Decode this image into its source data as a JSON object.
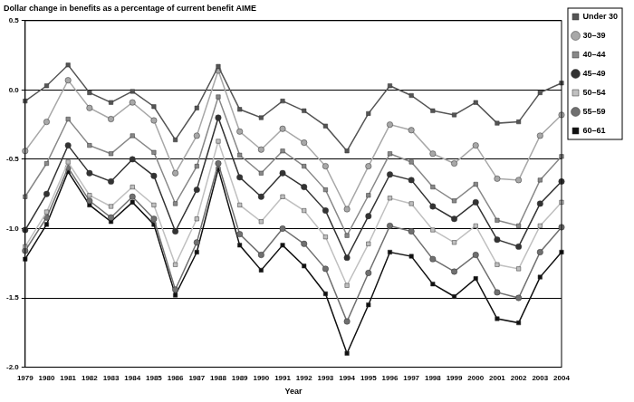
{
  "chart_data": {
    "type": "line",
    "ylabel": "Dollar change in benefits as a percentage of current benefit AIME",
    "xlabel": "Year",
    "categories": [
      "1979",
      "1980",
      "1981",
      "1982",
      "1983",
      "1984",
      "1985",
      "1986",
      "1987",
      "1988",
      "1989",
      "1990",
      "1991",
      "1992",
      "1993",
      "1994",
      "1995",
      "1996",
      "1997",
      "1998",
      "1999",
      "2000",
      "2001",
      "2002",
      "2003",
      "2004"
    ],
    "ylim": [
      -2.0,
      0.5
    ],
    "yticks": [
      {
        "value": -2.0,
        "label": "-2.0"
      },
      {
        "value": -1.5,
        "label": "-1.5"
      },
      {
        "value": -1.0,
        "label": "-1.0"
      },
      {
        "value": -0.5,
        "label": "-0.5"
      },
      {
        "value": 0.0,
        "label": "0.0"
      },
      {
        "value": 0.5,
        "label": "0.5"
      }
    ],
    "grid": true,
    "legend": "upper right",
    "series": [
      {
        "name": "Under 30",
        "color": "#555555",
        "marker": "square",
        "values": [
          -0.08,
          0.03,
          0.18,
          -0.02,
          -0.09,
          -0.01,
          -0.12,
          -0.36,
          -0.13,
          0.17,
          -0.14,
          -0.2,
          -0.08,
          -0.15,
          -0.26,
          -0.44,
          -0.17,
          0.03,
          -0.04,
          -0.15,
          -0.18,
          -0.09,
          -0.24,
          -0.23,
          -0.02,
          0.05
        ]
      },
      {
        "name": "30–39",
        "color": "#a8a8a8",
        "marker": "circle",
        "values": [
          -0.44,
          -0.23,
          0.07,
          -0.13,
          -0.21,
          -0.09,
          -0.22,
          -0.6,
          -0.33,
          0.14,
          -0.3,
          -0.43,
          -0.28,
          -0.38,
          -0.55,
          -0.86,
          -0.55,
          -0.25,
          -0.29,
          -0.46,
          -0.53,
          -0.4,
          -0.64,
          -0.65,
          -0.33,
          -0.18
        ]
      },
      {
        "name": "40–44",
        "color": "#888888",
        "marker": "square",
        "values": [
          -0.77,
          -0.53,
          -0.21,
          -0.4,
          -0.46,
          -0.33,
          -0.45,
          -0.82,
          -0.55,
          -0.05,
          -0.47,
          -0.6,
          -0.44,
          -0.55,
          -0.72,
          -1.05,
          -0.76,
          -0.46,
          -0.52,
          -0.7,
          -0.8,
          -0.68,
          -0.94,
          -0.98,
          -0.65,
          -0.48
        ]
      },
      {
        "name": "45–49",
        "color": "#333333",
        "marker": "circle",
        "values": [
          -1.01,
          -0.75,
          -0.4,
          -0.6,
          -0.66,
          -0.5,
          -0.62,
          -1.02,
          -0.72,
          -0.2,
          -0.63,
          -0.77,
          -0.6,
          -0.7,
          -0.87,
          -1.21,
          -0.91,
          -0.61,
          -0.65,
          -0.84,
          -0.93,
          -0.81,
          -1.08,
          -1.13,
          -0.82,
          -0.66
        ]
      },
      {
        "name": "50–54",
        "color": "#c0c0c0",
        "marker": "square",
        "values": [
          -1.13,
          -0.88,
          -0.52,
          -0.76,
          -0.84,
          -0.7,
          -0.83,
          -1.26,
          -0.93,
          -0.37,
          -0.83,
          -0.95,
          -0.77,
          -0.87,
          -1.06,
          -1.41,
          -1.11,
          -0.78,
          -0.82,
          -1.01,
          -1.1,
          -0.98,
          -1.26,
          -1.29,
          -0.98,
          -0.81
        ]
      },
      {
        "name": "55–59",
        "color": "#707070",
        "marker": "circle",
        "values": [
          -1.16,
          -0.92,
          -0.56,
          -0.8,
          -0.92,
          -0.77,
          -0.93,
          -1.44,
          -1.1,
          -0.53,
          -1.04,
          -1.19,
          -1.0,
          -1.11,
          -1.29,
          -1.67,
          -1.32,
          -0.98,
          -1.02,
          -1.22,
          -1.31,
          -1.19,
          -1.46,
          -1.5,
          -1.17,
          -0.99
        ]
      },
      {
        "name": "60–61",
        "color": "#111111",
        "marker": "square",
        "values": [
          -1.22,
          -0.97,
          -0.59,
          -0.83,
          -0.95,
          -0.81,
          -0.97,
          -1.48,
          -1.17,
          -0.57,
          -1.12,
          -1.3,
          -1.12,
          -1.27,
          -1.47,
          -1.9,
          -1.55,
          -1.17,
          -1.2,
          -1.4,
          -1.49,
          -1.36,
          -1.65,
          -1.68,
          -1.35,
          -1.17
        ]
      }
    ]
  }
}
